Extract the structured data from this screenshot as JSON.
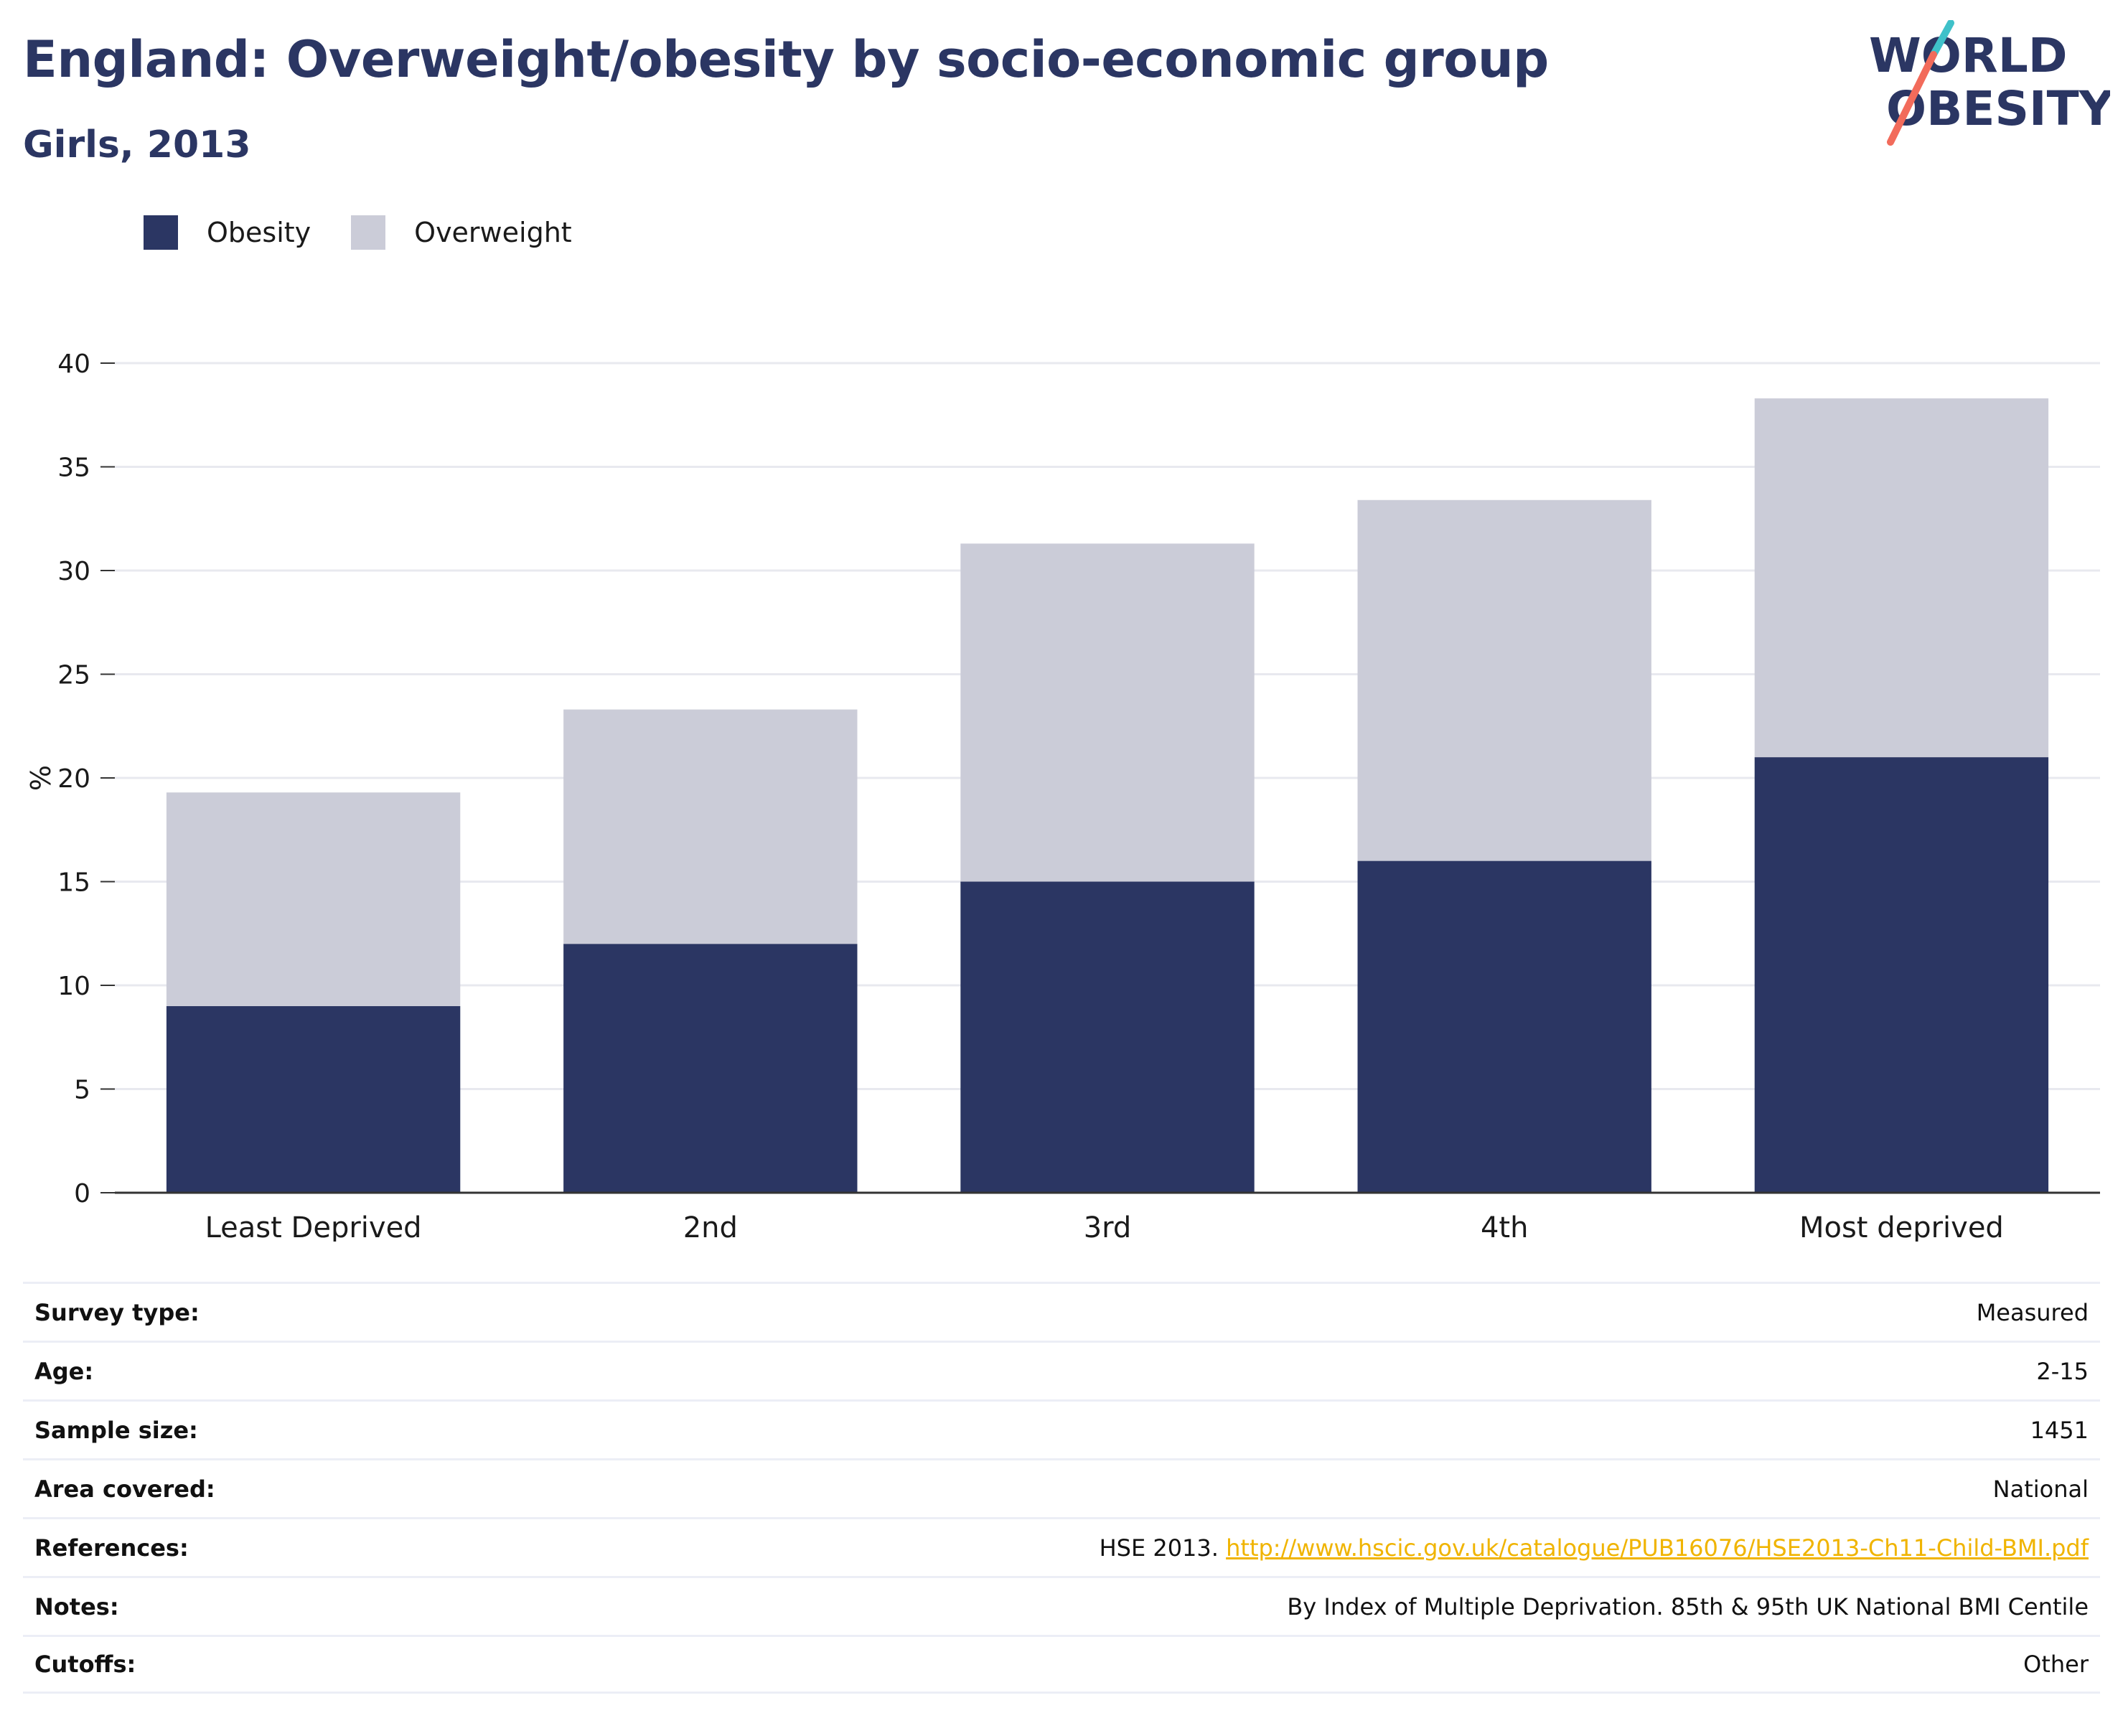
{
  "header": {
    "title": "England: Overweight/obesity by socio-economic group",
    "subtitle": "Girls, 2013"
  },
  "logo": {
    "line1": "WORLD",
    "line2": "OBESITY",
    "slash_colors": [
      "#3fc1c9",
      "#f26b5b"
    ]
  },
  "colors": {
    "obesity": "#2b3663",
    "overweight": "#cbccd8",
    "text_primary": "#2b3663",
    "link": "#f0b400"
  },
  "chart_data": {
    "type": "bar",
    "stacked": true,
    "categories": [
      "Least Deprived",
      "2nd",
      "3rd",
      "4th",
      "Most deprived"
    ],
    "series": [
      {
        "name": "Obesity",
        "values": [
          9,
          12,
          15,
          16,
          21
        ]
      },
      {
        "name": "Overweight",
        "values": [
          10.3,
          11.3,
          16.3,
          17.4,
          17.3
        ]
      }
    ],
    "ylabel": "%",
    "xlabel": "",
    "ylim": [
      0,
      40
    ],
    "yticks": [
      0,
      5,
      10,
      15,
      20,
      25,
      30,
      35,
      40
    ],
    "grid": true,
    "legend_position": "top-left"
  },
  "info": [
    {
      "label": "Survey type:",
      "value": "Measured"
    },
    {
      "label": "Age:",
      "value": "2-15"
    },
    {
      "label": "Sample size:",
      "value": "1451"
    },
    {
      "label": "Area covered:",
      "value": "National"
    },
    {
      "label": "References:",
      "value": "HSE 2013.",
      "link": "http://www.hscic.gov.uk/catalogue/PUB16076/HSE2013-Ch11-Child-BMI.pdf"
    },
    {
      "label": "Notes:",
      "value": "By Index of Multiple Deprivation. 85th & 95th UK National BMI Centile"
    },
    {
      "label": "Cutoffs:",
      "value": "Other"
    }
  ]
}
